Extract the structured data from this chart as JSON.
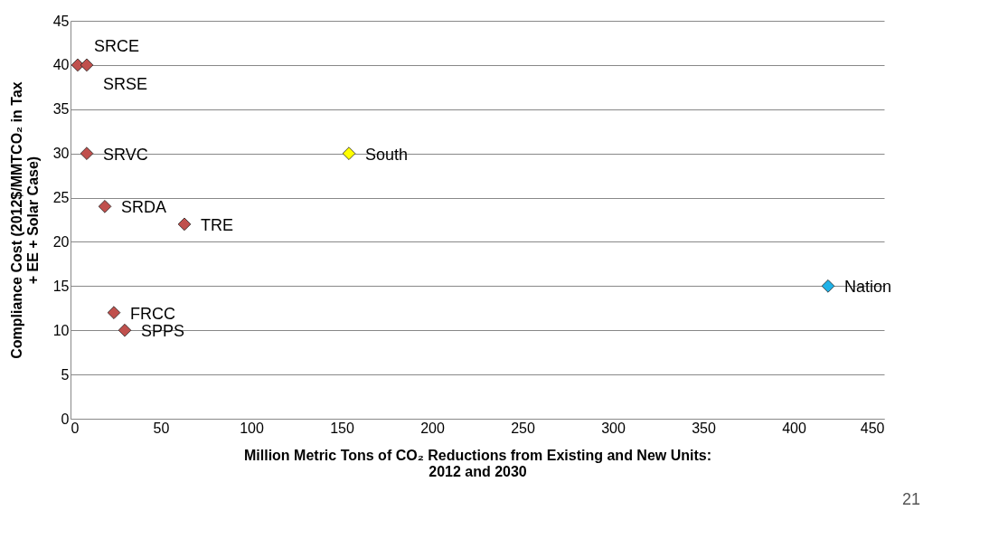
{
  "chart_data": {
    "type": "scatter",
    "xlabel": "Million Metric Tons of CO₂ Reductions from Existing and New Units: 2012 and 2030",
    "ylabel": "Compliance Cost (2012$/MMTCO₂ in Tax + EE + Solar Case)",
    "series": [
      {
        "name": "SRCE",
        "color": "#c0504d",
        "x": [
          4
        ],
        "values": [
          40
        ]
      },
      {
        "name": "SRSE",
        "color": "#c0504d",
        "x": [
          9
        ],
        "values": [
          40
        ]
      },
      {
        "name": "SRVC",
        "color": "#c0504d",
        "x": [
          9
        ],
        "values": [
          30
        ]
      },
      {
        "name": "SRDA",
        "color": "#c0504d",
        "x": [
          19
        ],
        "values": [
          24
        ]
      },
      {
        "name": "TRE",
        "color": "#c0504d",
        "x": [
          63
        ],
        "values": [
          22
        ]
      },
      {
        "name": "FRCC",
        "color": "#c0504d",
        "x": [
          24
        ],
        "values": [
          12
        ]
      },
      {
        "name": "SPPS",
        "color": "#c0504d",
        "x": [
          30
        ],
        "values": [
          10
        ]
      },
      {
        "name": "South",
        "color": "#ffff00",
        "x": [
          154
        ],
        "values": [
          30
        ]
      },
      {
        "name": "Nation",
        "color": "#1fb2e8",
        "x": [
          419
        ],
        "values": [
          15
        ]
      }
    ],
    "xlim": [
      0,
      450
    ],
    "xticks": [
      0,
      50,
      100,
      150,
      200,
      250,
      300,
      350,
      400,
      450
    ],
    "ylim": [
      0,
      45
    ],
    "yticks": [
      0,
      5,
      10,
      15,
      20,
      25,
      30,
      35,
      40,
      45
    ],
    "grid": "y",
    "marker": "diamond",
    "legend": false,
    "annotations": [
      "21"
    ]
  }
}
